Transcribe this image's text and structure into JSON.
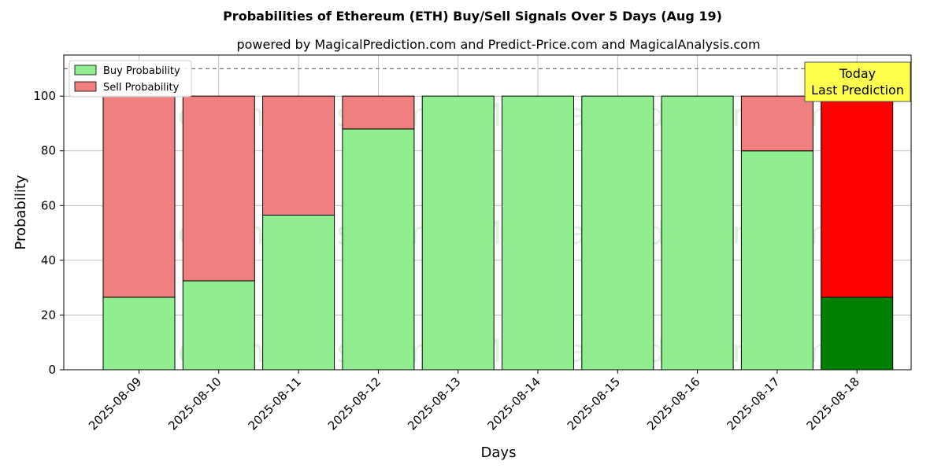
{
  "chart_data": {
    "type": "bar",
    "stacked": true,
    "title": "Probabilities of Ethereum (ETH) Buy/Sell Signals Over 5 Days (Aug 19)",
    "subtitle": "powered by MagicalPrediction.com and Predict-Price.com and MagicalAnalysis.com",
    "xlabel": "Days",
    "ylabel": "Probability",
    "ylim": [
      0,
      115
    ],
    "yticks": [
      0,
      20,
      40,
      60,
      80,
      100
    ],
    "grid": true,
    "legend_position": "top-left",
    "reference_line": 110,
    "categories": [
      "2025-08-09",
      "2025-08-10",
      "2025-08-11",
      "2025-08-12",
      "2025-08-13",
      "2025-08-14",
      "2025-08-15",
      "2025-08-16",
      "2025-08-17",
      "2025-08-18"
    ],
    "series": [
      {
        "name": "Buy Probability",
        "values": [
          26.5,
          32.5,
          56.5,
          88,
          100,
          100,
          100,
          100,
          80,
          26.5
        ],
        "color": "#90ee90",
        "highlight_color": "#008000"
      },
      {
        "name": "Sell Probability",
        "values": [
          73.5,
          67.5,
          43.5,
          12,
          0,
          0,
          0,
          0,
          20,
          73.5
        ],
        "color": "#f08080",
        "highlight_color": "#ff0000"
      }
    ],
    "highlight_index": 9,
    "annotation": {
      "line1": "Today",
      "line2": "Last Prediction",
      "color": "#ffff4d"
    },
    "watermarks": [
      "MagicalAnalysis.com",
      "MagicalPrediction.com"
    ]
  }
}
